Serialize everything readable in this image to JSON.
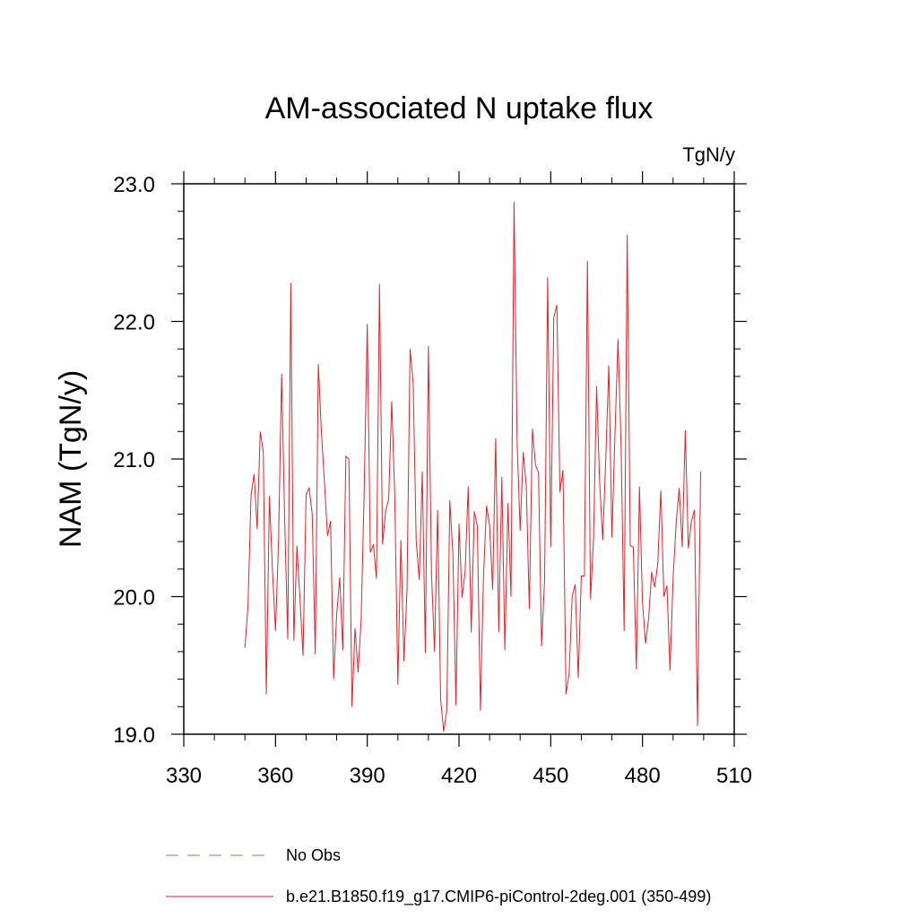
{
  "chart_data": {
    "type": "line",
    "title": "AM-associated N uptake flux",
    "units_label": "TgN/y",
    "xlabel": "",
    "ylabel": "NAM  (TgN/y)",
    "xlim": [
      330,
      510
    ],
    "ylim": [
      19.0,
      23.0
    ],
    "x_ticks": [
      330,
      360,
      390,
      420,
      450,
      480,
      510
    ],
    "x_tick_labels": [
      "330",
      "360",
      "390",
      "420",
      "450",
      "480",
      "510"
    ],
    "y_ticks": [
      19.0,
      20.0,
      21.0,
      22.0,
      23.0
    ],
    "y_tick_labels": [
      "19.0",
      "20.0",
      "21.0",
      "22.0",
      "23.0"
    ],
    "legend": [
      {
        "label": "No Obs",
        "color": "#7b6fd6",
        "style": "dashed"
      },
      {
        "label": "b.e21.B1850.f19_g17.CMIP6-piControl-2deg.001 (350-499)",
        "color": "#e8202a",
        "style": "solid"
      }
    ],
    "series": [
      {
        "name": "b.e21.B1850.f19_g17.CMIP6-piControl-2deg.001 (350-499)",
        "color": "#e8202a",
        "x_start": 350,
        "values": [
          19.63,
          19.93,
          20.74,
          20.89,
          20.49,
          21.2,
          21.05,
          19.29,
          20.73,
          20.19,
          19.75,
          20.41,
          21.62,
          20.55,
          19.69,
          22.28,
          19.68,
          20.37,
          19.98,
          19.57,
          20.74,
          20.79,
          20.6,
          19.58,
          21.69,
          21.2,
          20.83,
          20.44,
          20.55,
          19.4,
          19.87,
          20.14,
          19.61,
          21.02,
          21.0,
          19.2,
          19.77,
          19.45,
          19.83,
          20.77,
          21.98,
          20.32,
          20.38,
          20.13,
          22.27,
          20.38,
          20.62,
          20.71,
          21.42,
          20.73,
          19.36,
          20.41,
          19.53,
          20.05,
          21.8,
          21.56,
          20.41,
          20.12,
          20.91,
          19.59,
          21.82,
          20.17,
          19.6,
          20.63,
          19.25,
          19.02,
          19.17,
          20.7,
          20.31,
          19.21,
          20.53,
          19.99,
          20.18,
          20.8,
          19.74,
          20.62,
          20.51,
          19.17,
          20.14,
          20.66,
          20.52,
          20.05,
          21.15,
          19.74,
          20.87,
          19.61,
          20.68,
          20.0,
          22.87,
          21.13,
          20.48,
          21.05,
          20.81,
          19.91,
          21.22,
          20.96,
          20.9,
          19.64,
          20.13,
          22.32,
          20.36,
          22.03,
          22.12,
          20.76,
          20.92,
          19.29,
          19.44,
          20.0,
          20.09,
          19.41,
          20.15,
          20.15,
          22.44,
          19.98,
          20.42,
          21.53,
          20.83,
          20.41,
          21.0,
          21.68,
          20.43,
          21.18,
          21.87,
          21.1,
          19.75,
          22.63,
          20.37,
          20.36,
          19.47,
          20.8,
          19.96,
          19.66,
          19.84,
          20.18,
          20.07,
          20.24,
          20.77,
          20.0,
          20.08,
          19.46,
          20.13,
          20.53,
          20.79,
          20.36,
          21.21,
          20.35,
          20.55,
          20.63,
          19.06,
          20.91
        ]
      }
    ]
  }
}
